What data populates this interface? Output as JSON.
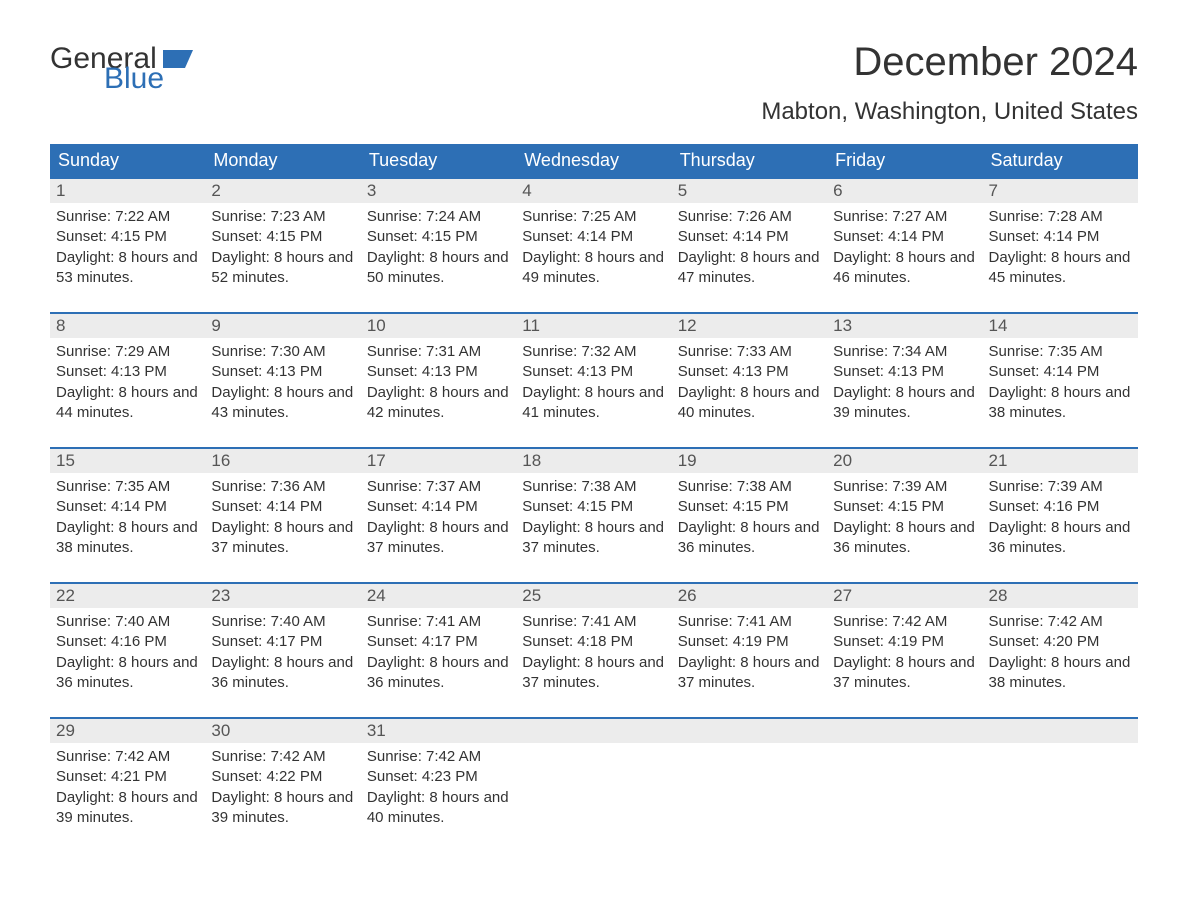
{
  "brand": {
    "word1": "General",
    "word2": "Blue",
    "flag_color": "#2d6fb5"
  },
  "title": "December 2024",
  "location": "Mabton, Washington, United States",
  "colors": {
    "header_bg": "#2d6fb5",
    "header_fg": "#ffffff",
    "daynum_bg": "#ececec",
    "row_border": "#2d6fb5",
    "text": "#333333",
    "background": "#ffffff"
  },
  "typography": {
    "title_fontsize": 40,
    "location_fontsize": 24,
    "header_fontsize": 18,
    "daynum_fontsize": 17,
    "body_fontsize": 15
  },
  "layout": {
    "columns": 7,
    "rows": 5,
    "cell_padding_bottom": 24
  },
  "weekdays": [
    "Sunday",
    "Monday",
    "Tuesday",
    "Wednesday",
    "Thursday",
    "Friday",
    "Saturday"
  ],
  "labels": {
    "sunrise": "Sunrise:",
    "sunset": "Sunset:",
    "daylight": "Daylight:"
  },
  "weeks": [
    [
      {
        "day": "1",
        "sunrise": "7:22 AM",
        "sunset": "4:15 PM",
        "daylight": "8 hours and 53 minutes."
      },
      {
        "day": "2",
        "sunrise": "7:23 AM",
        "sunset": "4:15 PM",
        "daylight": "8 hours and 52 minutes."
      },
      {
        "day": "3",
        "sunrise": "7:24 AM",
        "sunset": "4:15 PM",
        "daylight": "8 hours and 50 minutes."
      },
      {
        "day": "4",
        "sunrise": "7:25 AM",
        "sunset": "4:14 PM",
        "daylight": "8 hours and 49 minutes."
      },
      {
        "day": "5",
        "sunrise": "7:26 AM",
        "sunset": "4:14 PM",
        "daylight": "8 hours and 47 minutes."
      },
      {
        "day": "6",
        "sunrise": "7:27 AM",
        "sunset": "4:14 PM",
        "daylight": "8 hours and 46 minutes."
      },
      {
        "day": "7",
        "sunrise": "7:28 AM",
        "sunset": "4:14 PM",
        "daylight": "8 hours and 45 minutes."
      }
    ],
    [
      {
        "day": "8",
        "sunrise": "7:29 AM",
        "sunset": "4:13 PM",
        "daylight": "8 hours and 44 minutes."
      },
      {
        "day": "9",
        "sunrise": "7:30 AM",
        "sunset": "4:13 PM",
        "daylight": "8 hours and 43 minutes."
      },
      {
        "day": "10",
        "sunrise": "7:31 AM",
        "sunset": "4:13 PM",
        "daylight": "8 hours and 42 minutes."
      },
      {
        "day": "11",
        "sunrise": "7:32 AM",
        "sunset": "4:13 PM",
        "daylight": "8 hours and 41 minutes."
      },
      {
        "day": "12",
        "sunrise": "7:33 AM",
        "sunset": "4:13 PM",
        "daylight": "8 hours and 40 minutes."
      },
      {
        "day": "13",
        "sunrise": "7:34 AM",
        "sunset": "4:13 PM",
        "daylight": "8 hours and 39 minutes."
      },
      {
        "day": "14",
        "sunrise": "7:35 AM",
        "sunset": "4:14 PM",
        "daylight": "8 hours and 38 minutes."
      }
    ],
    [
      {
        "day": "15",
        "sunrise": "7:35 AM",
        "sunset": "4:14 PM",
        "daylight": "8 hours and 38 minutes."
      },
      {
        "day": "16",
        "sunrise": "7:36 AM",
        "sunset": "4:14 PM",
        "daylight": "8 hours and 37 minutes."
      },
      {
        "day": "17",
        "sunrise": "7:37 AM",
        "sunset": "4:14 PM",
        "daylight": "8 hours and 37 minutes."
      },
      {
        "day": "18",
        "sunrise": "7:38 AM",
        "sunset": "4:15 PM",
        "daylight": "8 hours and 37 minutes."
      },
      {
        "day": "19",
        "sunrise": "7:38 AM",
        "sunset": "4:15 PM",
        "daylight": "8 hours and 36 minutes."
      },
      {
        "day": "20",
        "sunrise": "7:39 AM",
        "sunset": "4:15 PM",
        "daylight": "8 hours and 36 minutes."
      },
      {
        "day": "21",
        "sunrise": "7:39 AM",
        "sunset": "4:16 PM",
        "daylight": "8 hours and 36 minutes."
      }
    ],
    [
      {
        "day": "22",
        "sunrise": "7:40 AM",
        "sunset": "4:16 PM",
        "daylight": "8 hours and 36 minutes."
      },
      {
        "day": "23",
        "sunrise": "7:40 AM",
        "sunset": "4:17 PM",
        "daylight": "8 hours and 36 minutes."
      },
      {
        "day": "24",
        "sunrise": "7:41 AM",
        "sunset": "4:17 PM",
        "daylight": "8 hours and 36 minutes."
      },
      {
        "day": "25",
        "sunrise": "7:41 AM",
        "sunset": "4:18 PM",
        "daylight": "8 hours and 37 minutes."
      },
      {
        "day": "26",
        "sunrise": "7:41 AM",
        "sunset": "4:19 PM",
        "daylight": "8 hours and 37 minutes."
      },
      {
        "day": "27",
        "sunrise": "7:42 AM",
        "sunset": "4:19 PM",
        "daylight": "8 hours and 37 minutes."
      },
      {
        "day": "28",
        "sunrise": "7:42 AM",
        "sunset": "4:20 PM",
        "daylight": "8 hours and 38 minutes."
      }
    ],
    [
      {
        "day": "29",
        "sunrise": "7:42 AM",
        "sunset": "4:21 PM",
        "daylight": "8 hours and 39 minutes."
      },
      {
        "day": "30",
        "sunrise": "7:42 AM",
        "sunset": "4:22 PM",
        "daylight": "8 hours and 39 minutes."
      },
      {
        "day": "31",
        "sunrise": "7:42 AM",
        "sunset": "4:23 PM",
        "daylight": "8 hours and 40 minutes."
      },
      null,
      null,
      null,
      null
    ]
  ]
}
